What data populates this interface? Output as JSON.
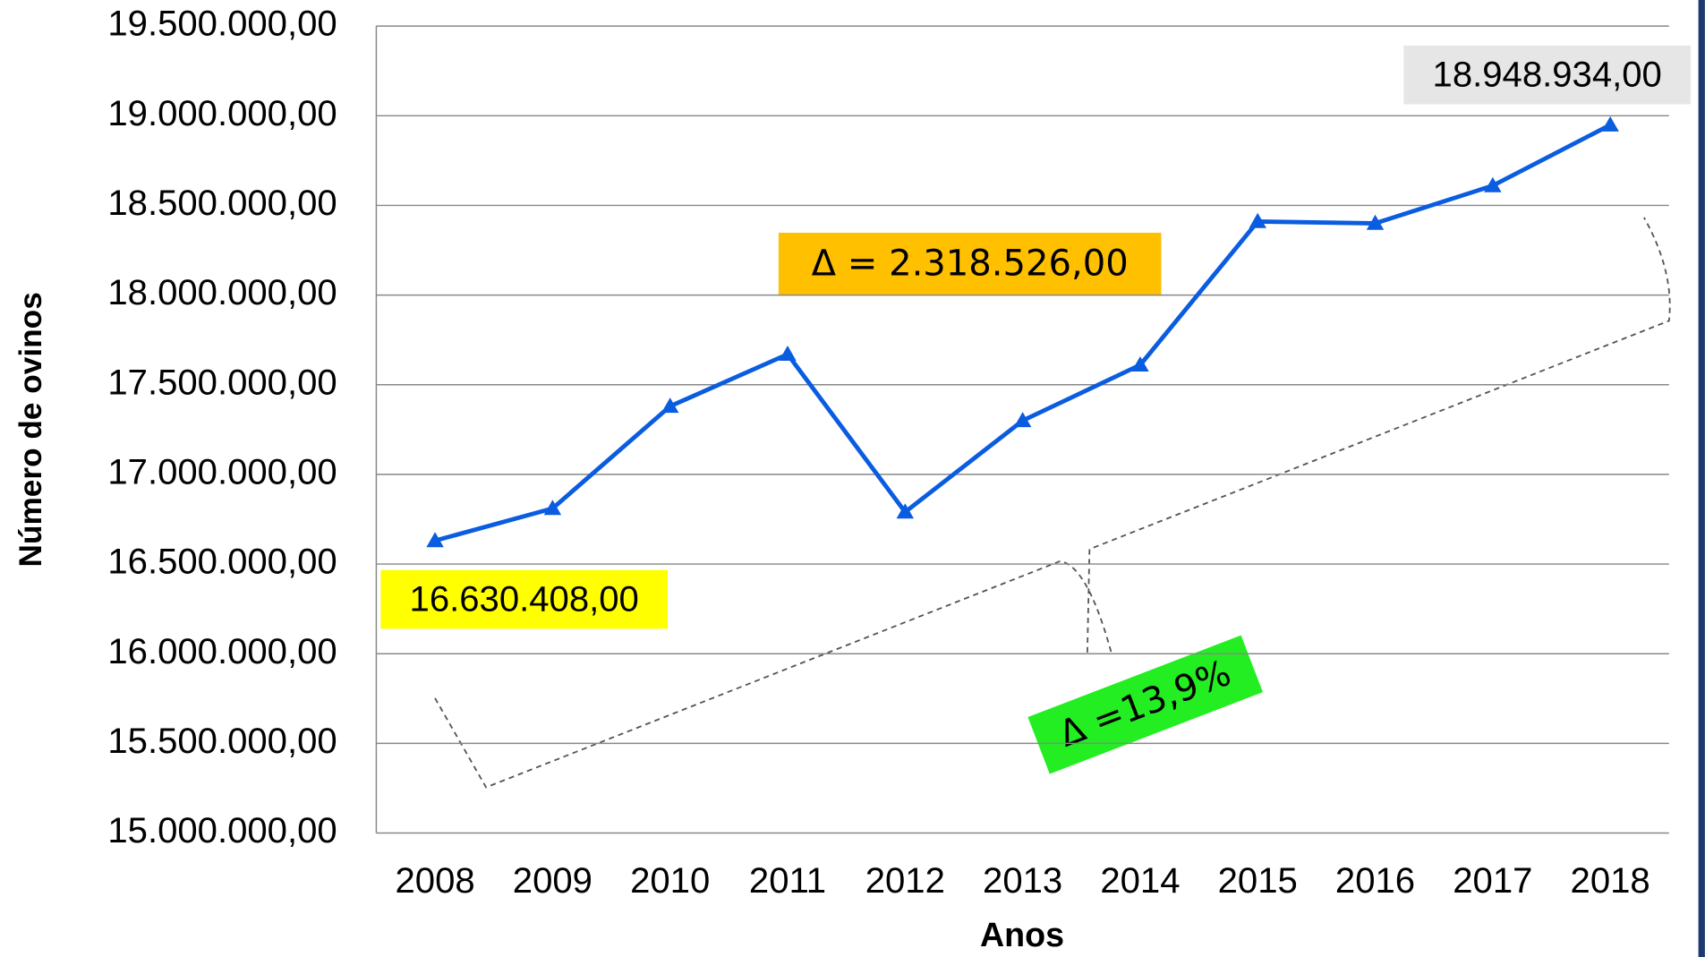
{
  "chart_data": {
    "type": "line",
    "x_label": "Anos",
    "y_label": "Número de ovinos",
    "categories": [
      "2008",
      "2009",
      "2010",
      "2011",
      "2012",
      "2013",
      "2014",
      "2015",
      "2016",
      "2017",
      "2018"
    ],
    "series": [
      {
        "name": "Número de ovinos",
        "color": "#0a5ce0",
        "values": [
          16630408,
          16810000,
          17380000,
          17670000,
          16790000,
          17300000,
          17610000,
          18410000,
          18400000,
          18610000,
          18948934
        ],
        "value_labels": [
          "16.630.408,00",
          null,
          null,
          null,
          null,
          null,
          null,
          null,
          null,
          null,
          "18.948.934,00"
        ]
      }
    ],
    "ylim": [
      15000000,
      19500000
    ],
    "yticks": [
      {
        "value": 15000000,
        "label": "15.000.000,00"
      },
      {
        "value": 15500000,
        "label": "15.500.000,00"
      },
      {
        "value": 16000000,
        "label": "16.000.000,00"
      },
      {
        "value": 16500000,
        "label": "16.500.000,00"
      },
      {
        "value": 17000000,
        "label": "17.000.000,00"
      },
      {
        "value": 17500000,
        "label": "17.500.000,00"
      },
      {
        "value": 18000000,
        "label": "18.000.000,00"
      },
      {
        "value": 18500000,
        "label": "18.500.000,00"
      },
      {
        "value": 19000000,
        "label": "19.000.000,00"
      },
      {
        "value": 19500000,
        "label": "19.500.000,00"
      }
    ],
    "grid": true,
    "annotations": [
      "Δ = 2.318.526,00",
      "Δ =13,9%"
    ]
  }
}
